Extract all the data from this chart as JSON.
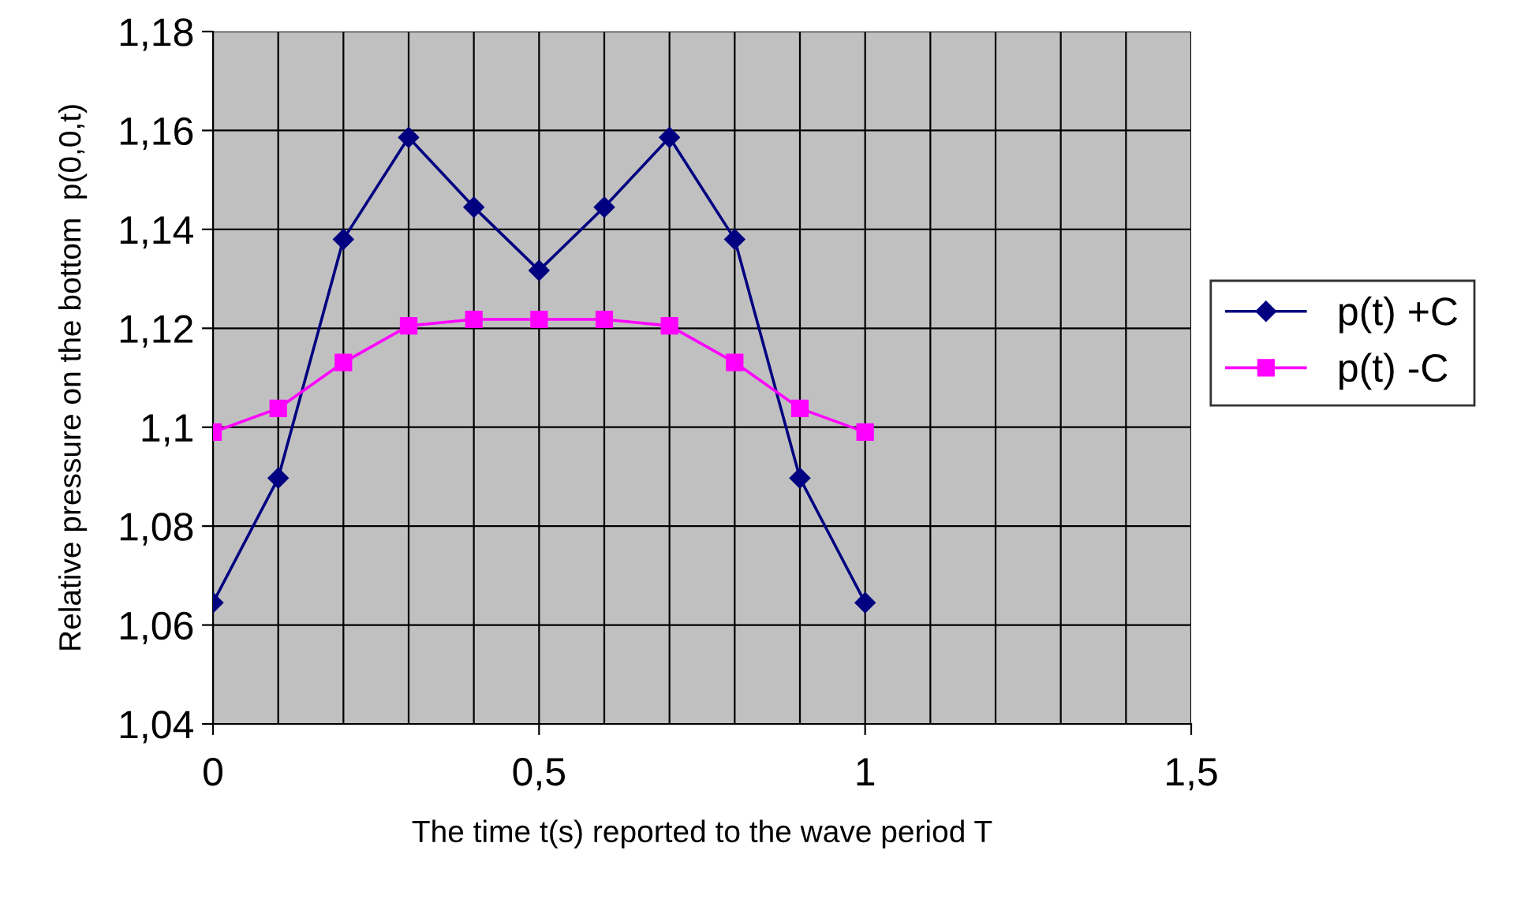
{
  "chart_data": {
    "type": "line",
    "xlabel": "The time t(s) reported to the wave period T",
    "ylabel": "Relative pressure on the bottom  p(0,0,t)",
    "x": [
      0,
      0.1,
      0.2,
      0.3,
      0.4,
      0.5,
      0.6,
      0.7,
      0.8,
      0.9,
      1
    ],
    "series": [
      {
        "name": "p(t) +C",
        "color": "#000080",
        "marker": "diamond",
        "values": [
          1.0645,
          1.0897,
          1.138,
          1.1586,
          1.1445,
          1.1317,
          1.1445,
          1.1586,
          1.138,
          1.0897,
          1.0645
        ]
      },
      {
        "name": "p(t) -C",
        "color": "#ff00ff",
        "marker": "square",
        "values": [
          1.099,
          1.1038,
          1.1131,
          1.1205,
          1.1218,
          1.1218,
          1.1218,
          1.1205,
          1.1131,
          1.1038,
          1.099
        ]
      }
    ],
    "xlim": [
      0,
      1.5
    ],
    "xticks": [
      0,
      {
        "value": 0.1,
        "label": null
      },
      {
        "value": 0.2,
        "label": null
      },
      {
        "value": 0.3,
        "label": null
      },
      {
        "value": 0.4,
        "label": null
      },
      {
        "value": 0.5,
        "label": "0,5"
      },
      {
        "value": 0.6,
        "label": null
      },
      {
        "value": 0.7,
        "label": null
      },
      {
        "value": 0.8,
        "label": null
      },
      {
        "value": 0.9,
        "label": null
      },
      1,
      {
        "value": 1.1,
        "label": null
      },
      {
        "value": 1.2,
        "label": null
      },
      {
        "value": 1.3,
        "label": null
      },
      {
        "value": 1.4,
        "label": null
      },
      {
        "value": 1.5,
        "label": "1,5"
      }
    ],
    "ylim": [
      1.04,
      1.18
    ],
    "yticks": [
      {
        "value": 1.04,
        "label": "1,04"
      },
      {
        "value": 1.06,
        "label": "1,06"
      },
      {
        "value": 1.08,
        "label": "1,08"
      },
      {
        "value": 1.1,
        "label": "1,1"
      },
      {
        "value": 1.12,
        "label": "1,12"
      },
      {
        "value": 1.14,
        "label": "1,14"
      },
      {
        "value": 1.16,
        "label": "1,16"
      },
      {
        "value": 1.18,
        "label": "1,18"
      }
    ],
    "grid": true,
    "legend": "right",
    "line_style": "solid"
  }
}
